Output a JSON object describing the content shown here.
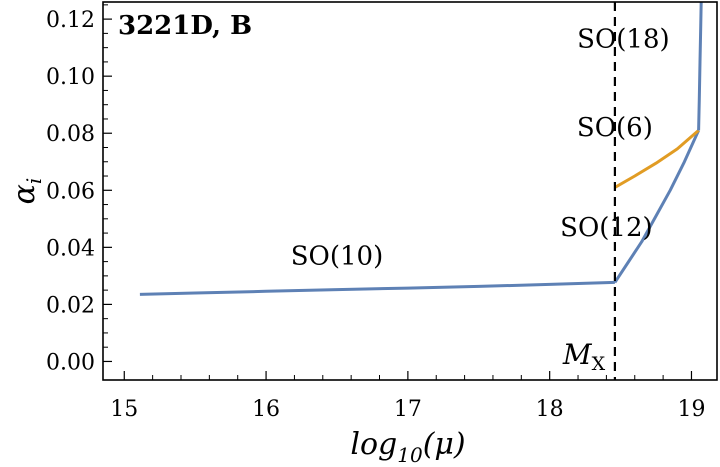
{
  "chart_data": {
    "type": "line",
    "title": "3221D, B",
    "xlabel": {
      "main": "log",
      "sub": "10",
      "arg": "(μ)"
    },
    "ylabel": {
      "main": "α",
      "sub": "i"
    },
    "xlim": [
      14.85,
      19.18
    ],
    "ylim": [
      -0.0065,
      0.126
    ],
    "x_ticks": [
      15,
      16,
      17,
      18,
      19
    ],
    "y_ticks": [
      0.0,
      0.02,
      0.04,
      0.06,
      0.08,
      0.1,
      0.12
    ],
    "x_tick_labels": [
      "15",
      "16",
      "17",
      "18",
      "19"
    ],
    "y_tick_labels": [
      "0.00",
      "0.02",
      "0.04",
      "0.06",
      "0.08",
      "0.10",
      "0.12"
    ],
    "grid": false,
    "vline": {
      "x": 18.46,
      "label_main": "M",
      "label_sub": "X",
      "style": "dashed"
    },
    "series": [
      {
        "name": "SO(10)",
        "color": "#5e81b5",
        "x": [
          15.11,
          15.5,
          16.0,
          16.5,
          17.0,
          17.5,
          18.0,
          18.46
        ],
        "y": [
          0.0235,
          0.024,
          0.0246,
          0.0252,
          0.0257,
          0.0263,
          0.027,
          0.0277
        ]
      },
      {
        "name": "SO(12)",
        "color": "#5e81b5",
        "x": [
          18.46,
          18.55,
          18.65,
          18.75,
          18.85,
          18.95,
          19.05
        ],
        "y": [
          0.0277,
          0.0345,
          0.042,
          0.051,
          0.06,
          0.07,
          0.081
        ]
      },
      {
        "name": "SO(6)",
        "color": "#e19c24",
        "x": [
          18.46,
          18.6,
          18.75,
          18.9,
          19.05
        ],
        "y": [
          0.061,
          0.065,
          0.0695,
          0.0745,
          0.081
        ]
      },
      {
        "name": "SO(18)",
        "color": "#5e81b5",
        "x": [
          19.05,
          19.055,
          19.06,
          19.065,
          19.07
        ],
        "y": [
          0.081,
          0.092,
          0.105,
          0.117,
          0.13
        ]
      }
    ],
    "annotations": [
      {
        "text": "SO(10)",
        "x": 16.5,
        "y": 0.034
      },
      {
        "text": "SO(12)",
        "x": 18.4,
        "y": 0.044
      },
      {
        "text": "SO(6)",
        "x": 18.46,
        "y": 0.079
      },
      {
        "text": "SO(18)",
        "x": 18.52,
        "y": 0.11
      }
    ]
  }
}
